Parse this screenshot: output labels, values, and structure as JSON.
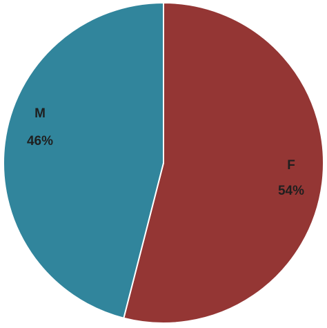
{
  "chart_data": {
    "type": "pie",
    "title": "",
    "slices": [
      {
        "name": "F",
        "label": "54%",
        "value": 54,
        "color": "#943634"
      },
      {
        "name": "M",
        "label": "46%",
        "value": 46,
        "color": "#31859c"
      }
    ]
  }
}
